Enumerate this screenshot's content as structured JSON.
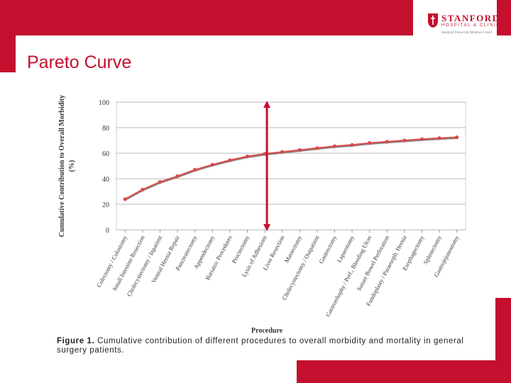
{
  "logo": {
    "name": "STANFORD",
    "subname": "HOSPITAL & CLINICS",
    "tagline": "Stanford University Medical Center"
  },
  "slide_title": "Pareto Curve",
  "caption": {
    "label": "Figure 1.",
    "text": "Cumulative contribution of different procedures to overall morbidity and mortality in general surgery patients."
  },
  "colors": {
    "brand": "#c4102e",
    "series_line": "#d94a4a",
    "series_shadow": "#888888",
    "arrow": "#c4102e"
  },
  "chart_data": {
    "type": "line",
    "xlabel": "Procedure",
    "ylabel_line1": "Cumulative Contribution to Overall Morbidity",
    "ylabel_line2": "(%)",
    "ylim": [
      0,
      100
    ],
    "yticks": [
      "0",
      "20",
      "40",
      "60",
      "80",
      "100"
    ],
    "grid": true,
    "categories": [
      "Colectomy / Colostomy",
      "Small Intestine Resection",
      "Cholecystectomy / Inpatient",
      "Ventral Hernia Repair",
      "Pancreatectomy",
      "Appendectomy",
      "Bariatric Procedures",
      "Proctectomy",
      "Lysis of Adhesions",
      "Liver Resection",
      "Mastectomy",
      "Cholecystectomy / Outpatient",
      "Gastrectomy",
      "Laparotomy",
      "Gastrorrhaphy / Perf., Bleeding Ulcer",
      "Suture Bowel Perforation",
      "Fundoplasty / Paraesoph. Hernia",
      "Esophagectomy",
      "Splenectomy",
      "Gastrojejunostomy"
    ],
    "values": [
      24,
      31.5,
      37.5,
      42,
      47,
      51,
      54.5,
      57.5,
      59.5,
      61,
      62.5,
      64,
      65.5,
      66.5,
      68,
      69,
      70,
      71,
      71.8,
      72.5
    ],
    "annotation": "double-headed vertical arrow near Lysis of Adhesions"
  }
}
